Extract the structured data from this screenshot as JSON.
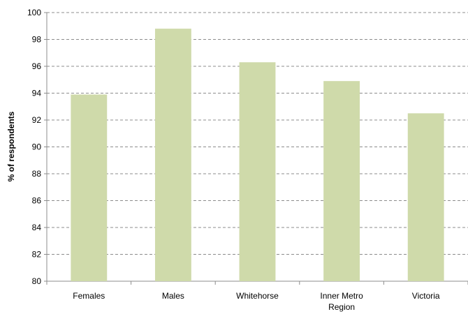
{
  "chart_data": {
    "type": "bar",
    "title": "",
    "xlabel": "",
    "ylabel": "% of respondents",
    "ylim": [
      80,
      100
    ],
    "y_ticks": [
      80,
      82,
      84,
      86,
      88,
      90,
      92,
      94,
      96,
      98,
      100
    ],
    "categories": [
      [
        "Females"
      ],
      [
        "Males"
      ],
      [
        "Whitehorse"
      ],
      [
        "Inner Metro",
        "Region"
      ],
      [
        "Victoria"
      ]
    ],
    "values": [
      93.9,
      98.8,
      96.3,
      94.9,
      92.5
    ],
    "bar_color": "#cfdaaa",
    "grid_color": "#8c8c8c",
    "grid": true,
    "legend": "none"
  }
}
